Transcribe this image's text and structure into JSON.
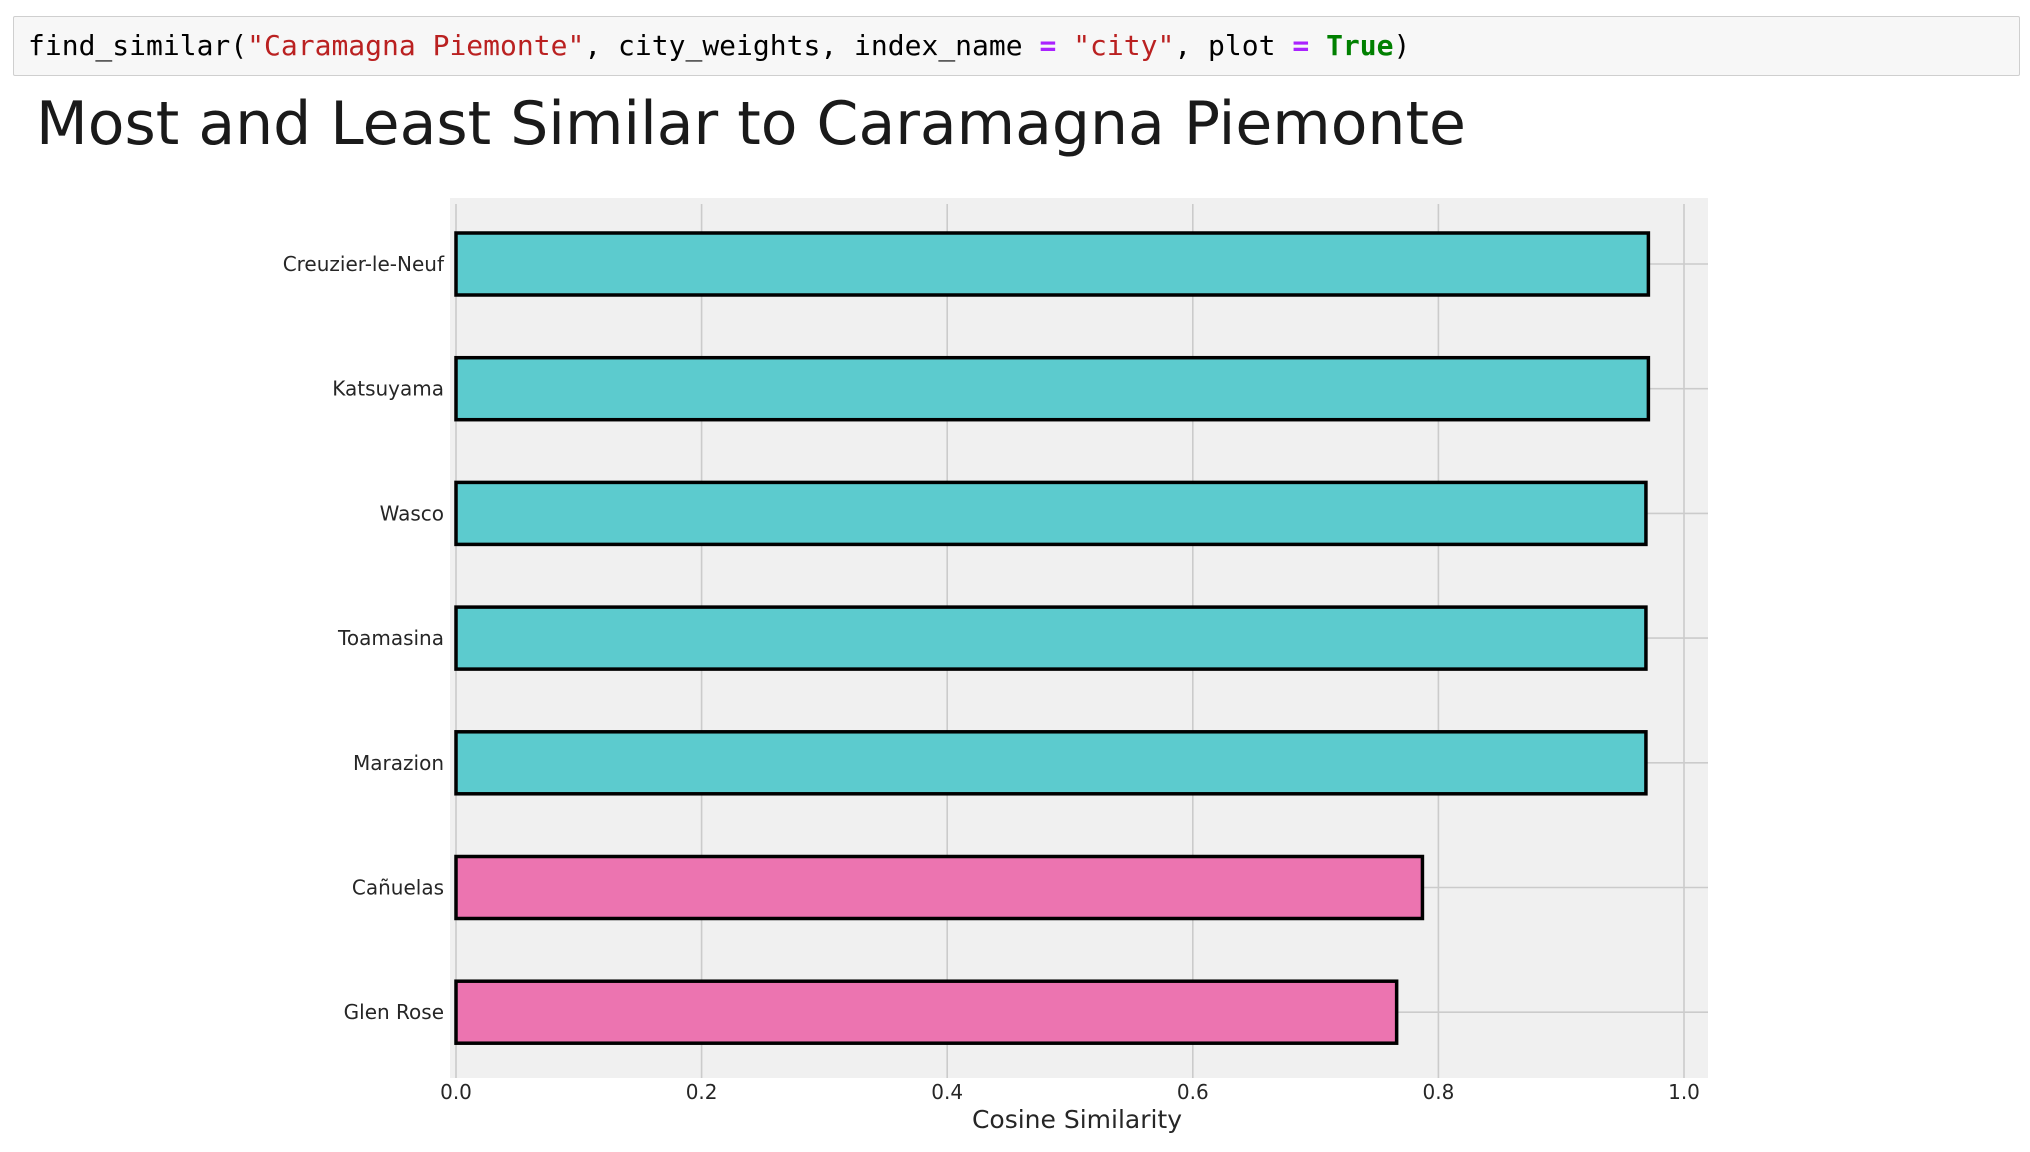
{
  "code_cell": {
    "fn": "find_similar(",
    "arg_city": "\"Caramagna Piemonte\"",
    "sep1": ", city_weights, index_name ",
    "eq1": "=",
    "sp1": " ",
    "arg_index": "\"city\"",
    "sep2": ", plot ",
    "eq2": "=",
    "sp2": " ",
    "arg_plot": "True",
    "close": ")"
  },
  "chart_data": {
    "type": "bar",
    "orientation": "horizontal",
    "title": "Most and Least Similar to Caramagna Piemonte",
    "xlabel": "Cosine Similarity",
    "ylabel": "",
    "xlim": [
      0.0,
      1.02
    ],
    "xticks": [
      "0.0",
      "0.2",
      "0.4",
      "0.6",
      "0.8",
      "1.0"
    ],
    "grid": true,
    "categories": [
      "Creuzier-le-Neuf",
      "Katsuyama",
      "Wasco",
      "Toamasina",
      "Marazion",
      "Cañuelas",
      "Glen Rose"
    ],
    "values": [
      0.971,
      0.971,
      0.969,
      0.969,
      0.969,
      0.787,
      0.766
    ],
    "bar_colors": [
      "#5ccbce",
      "#5ccbce",
      "#5ccbce",
      "#5ccbce",
      "#5ccbce",
      "#ec74b0",
      "#ec74b0"
    ],
    "colors": {
      "most_similar": "#5ccbce",
      "least_similar": "#ec74b0",
      "plot_background": "#f0f0f0",
      "grid": "#cbcbcb",
      "bar_edge": "#000000"
    }
  }
}
